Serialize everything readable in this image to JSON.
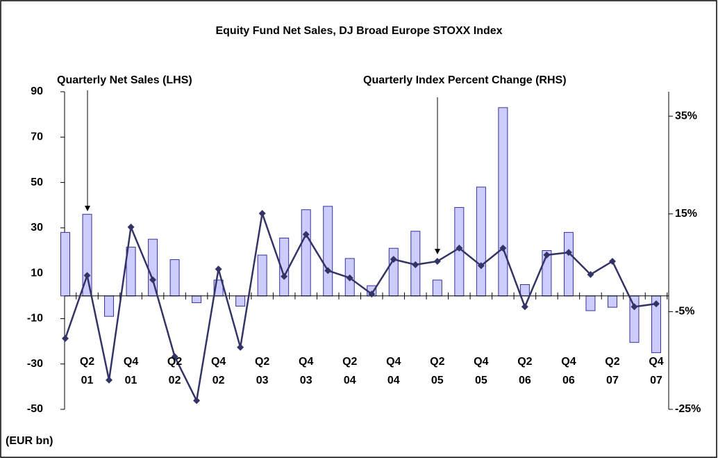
{
  "chart_data": {
    "type": "bar_line",
    "title": "Equity Fund Net Sales, DJ Broad Europe STOXX Index",
    "annotations": [
      "Quarterly Net Sales (LHS)",
      "Quarterly Index Percent Change (RHS)"
    ],
    "y_axis_label": "(EUR bn)",
    "categories": [
      null,
      "Q2\n01",
      null,
      "Q4\n01",
      null,
      "Q2\n02",
      null,
      "Q4\n02",
      null,
      "Q2\n03",
      null,
      "Q4\n03",
      null,
      "Q2\n04",
      null,
      "Q4\n04",
      null,
      "Q2\n05",
      null,
      "Q4\n05",
      null,
      "Q2\n06",
      null,
      "Q4\n06",
      null,
      "Q2\n07",
      null,
      "Q4\n07"
    ],
    "series": [
      {
        "name": "Quarterly Net Sales (LHS)",
        "type": "bar",
        "color": "#ccccff",
        "values": [
          28,
          36,
          -9,
          21.5,
          25,
          16,
          -3,
          7,
          -4.5,
          18,
          25.5,
          38,
          39.5,
          16.5,
          4.5,
          21,
          28.5,
          7,
          39,
          48,
          83,
          5,
          20,
          28,
          -6.5,
          -5,
          -20.5,
          -25
        ]
      },
      {
        "name": "Quarterly Index Percent Change (RHS)",
        "type": "line",
        "axis": "y2",
        "color": "#333366",
        "values": [
          -10.5,
          2.4,
          -19,
          12.3,
          1.5,
          -14.2,
          -23.2,
          3.7,
          -12.3,
          15.1,
          2.2,
          10.8,
          3.4,
          1.9,
          -1.4,
          5.7,
          4.6,
          5.3,
          8,
          4.4,
          8,
          -4,
          6.6,
          7.1,
          2.6,
          5.3,
          -4,
          -3.4
        ]
      }
    ],
    "ylim": [
      -50,
      90
    ],
    "yticks": [
      90,
      70,
      50,
      30,
      10,
      -10,
      -30,
      -50
    ],
    "y2lim": [
      -25,
      40
    ],
    "y2ticks": [
      {
        "value": 35,
        "label": "35%"
      },
      {
        "value": 15,
        "label": "15%"
      },
      {
        "value": -5,
        "label": "-5%"
      },
      {
        "value": -25,
        "label": "-25%"
      }
    ],
    "grid": false
  }
}
